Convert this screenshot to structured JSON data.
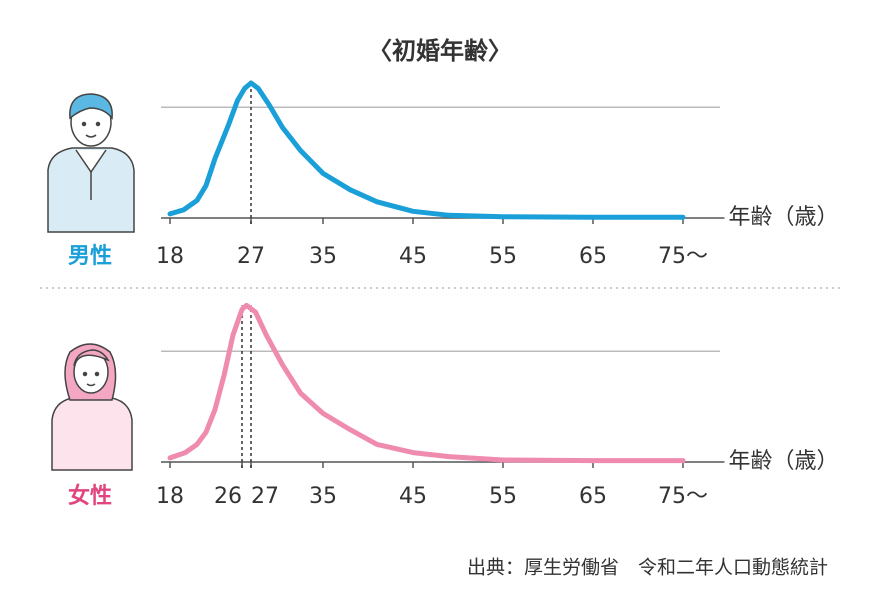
{
  "title": "〈初婚年齢〉",
  "source": "出典：厚生労働省　令和二年人口動態統計",
  "chart_data": [
    {
      "type": "line",
      "label": "男性",
      "label_color": "#1a9fd9",
      "xlabel": "年齢（歳）",
      "xlim": [
        17,
        78.5
      ],
      "ylim": [
        0,
        120
      ],
      "yticks": [
        82
      ],
      "grid": true,
      "xticks": [
        18,
        27,
        35,
        45,
        55,
        65,
        {
          "value": 75,
          "label": "75〜"
        }
      ],
      "peak_lines": [
        27
      ],
      "series": [
        {
          "color": "#1a9fd9",
          "x": [
            18,
            19.5,
            21,
            22,
            23,
            24.5,
            25.5,
            26.3,
            27,
            27.8,
            29,
            30.5,
            32.5,
            35,
            38,
            41,
            45,
            49,
            55,
            65,
            75
          ],
          "values": [
            3,
            6,
            13,
            24,
            44,
            69,
            87,
            96,
            100,
            96,
            84,
            67,
            50,
            33,
            21,
            12,
            5,
            2,
            1,
            0.5,
            0.5
          ]
        }
      ]
    },
    {
      "type": "line",
      "label": "女性",
      "label_color": "#e0457f",
      "xlabel": "年齢（歳）",
      "xlim": [
        17,
        78.5
      ],
      "ylim": [
        0,
        120
      ],
      "yticks": [
        82
      ],
      "grid": true,
      "xticks": [
        18,
        26,
        27,
        35,
        45,
        55,
        65,
        {
          "value": 75,
          "label": "75〜"
        }
      ],
      "peak_lines": [
        26,
        27
      ],
      "series": [
        {
          "color": "#f08bb0",
          "x": [
            18,
            19.7,
            21,
            22,
            23,
            24,
            25,
            26,
            26.5,
            27.5,
            28.7,
            30.5,
            32.5,
            35,
            38,
            41,
            45,
            49,
            55,
            65,
            75
          ],
          "values": [
            3,
            7,
            13,
            22,
            39,
            64,
            94,
            113,
            116,
            111,
            94,
            72,
            51,
            36,
            24,
            13,
            7,
            4,
            1.5,
            1,
            1
          ]
        }
      ]
    }
  ]
}
